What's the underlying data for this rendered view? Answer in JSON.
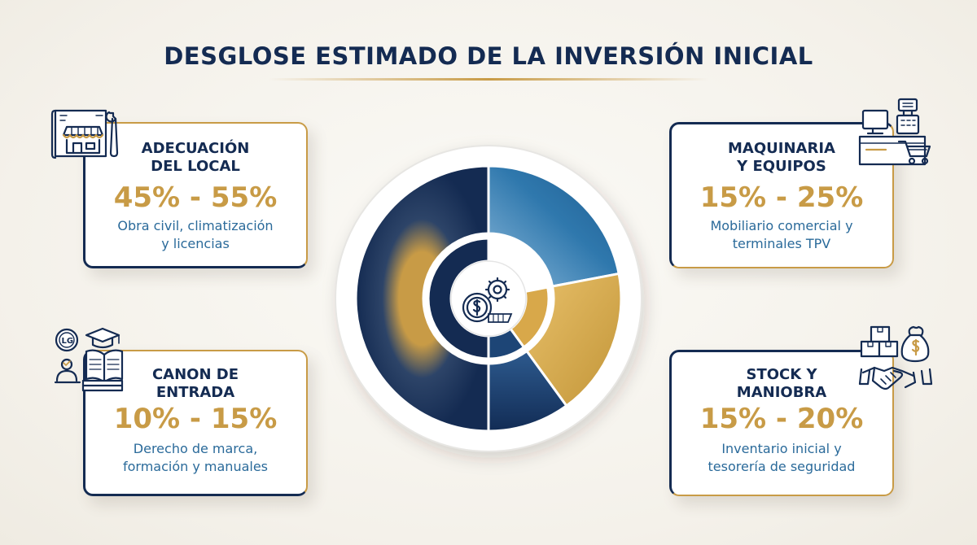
{
  "title": "DESGLOSE ESTIMADO DE LA INVERSIÓN INICIAL",
  "cards": [
    {
      "id": "local",
      "title_line1": "ADECUACIÓN",
      "title_line2": "DEL LOCAL",
      "range": "45% - 55%",
      "desc_line1": "Obra civil, climatización",
      "desc_line2": "y licencias",
      "icon": "shop-blueprint-wrench-icon"
    },
    {
      "id": "machinery",
      "title_line1": "MAQUINARIA",
      "title_line2": "Y EQUIPOS",
      "range": "15% - 25%",
      "desc_line1": "Mobiliario comercial y",
      "desc_line2": "terminales TPV",
      "icon": "pos-terminal-cart-icon"
    },
    {
      "id": "fee",
      "title_line1": "CANON DE",
      "title_line2": "ENTRADA",
      "range": "10% - 15%",
      "desc_line1": "Derecho de marca,",
      "desc_line2": "formación y manuales",
      "icon": "brand-training-manual-icon"
    },
    {
      "id": "stock",
      "title_line1": "STOCK Y",
      "title_line2": "MANIOBRA",
      "range": "15% - 20%",
      "desc_line1": "Inventario inicial y",
      "desc_line2": "tesorería de seguridad",
      "icon": "inventory-handshake-moneybag-icon"
    }
  ],
  "center_icon": "money-gear-icon",
  "colors": {
    "navy": "#142b52",
    "gold": "#c89b46",
    "blue": "#2a6a9a",
    "light_blue": "#5a9ccc"
  },
  "chart_data": {
    "type": "pie",
    "title": "",
    "style": "donut",
    "slices": [
      {
        "label": "MAQUINARIA Y EQUIPOS",
        "value": 22,
        "color": "#2a6a9a"
      },
      {
        "label": "STOCK Y MANIOBRA",
        "value": 18,
        "color": "#d2a544"
      },
      {
        "label": "CANON DE ENTRADA",
        "value": 10,
        "color": "#1d4576"
      },
      {
        "label": "ADECUACIÓN DEL LOCAL",
        "value": 50,
        "color": "#142b52"
      }
    ]
  }
}
